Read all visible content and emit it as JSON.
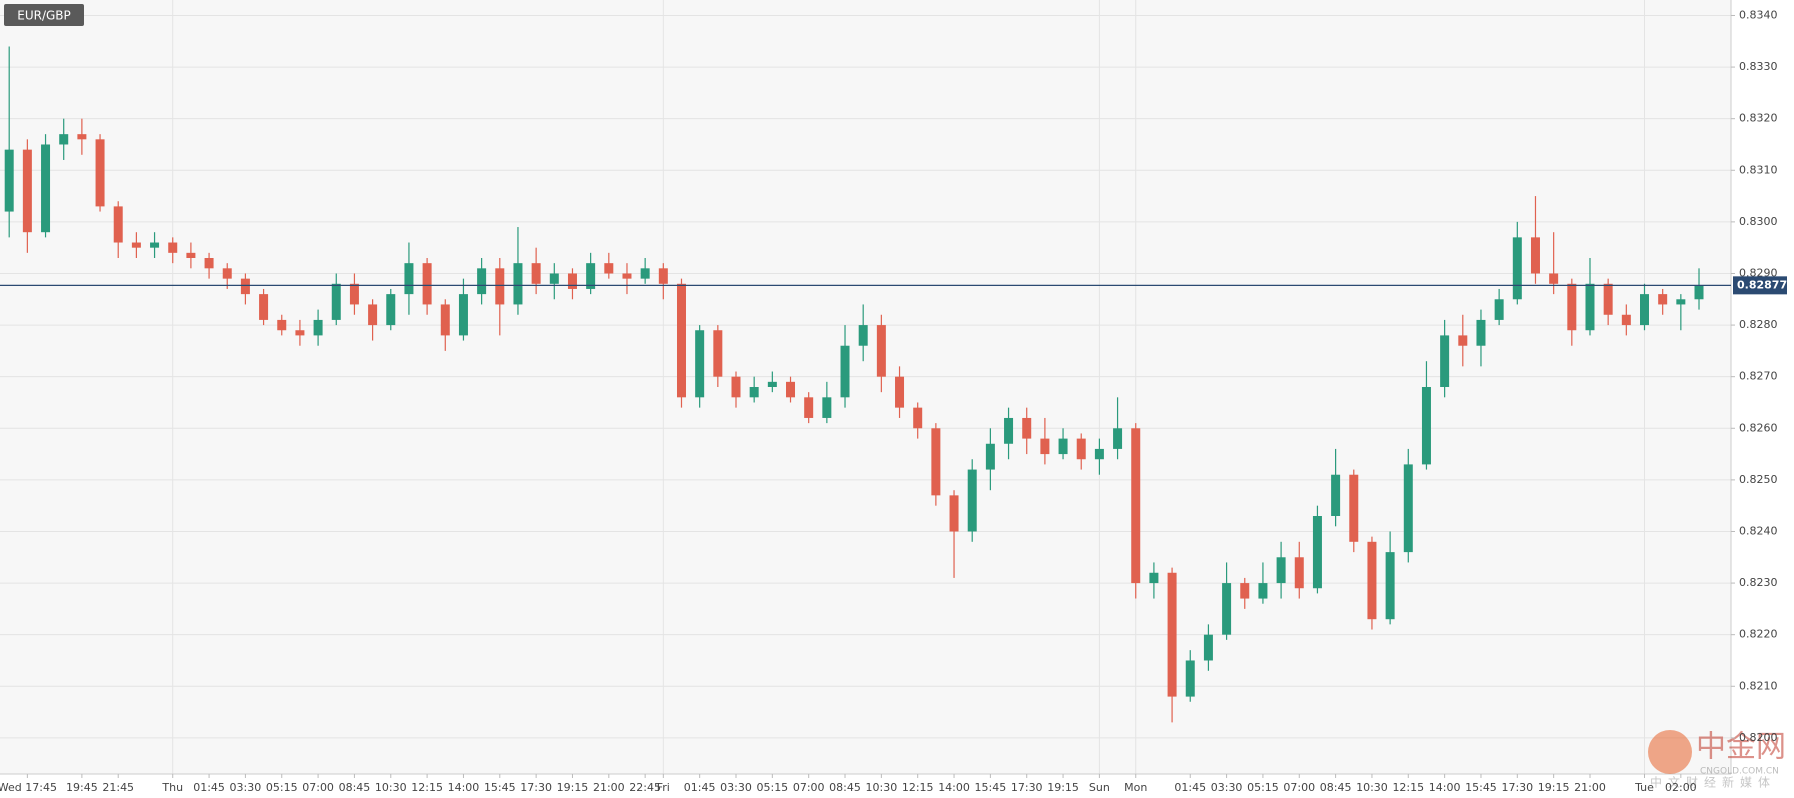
{
  "chart_data": {
    "type": "candlestick",
    "title": "EUR/GBP",
    "categories": [
      null,
      "Wed 17:45",
      null,
      null,
      "19:45",
      null,
      "21:45",
      null,
      null,
      "Thu",
      null,
      "01:45",
      null,
      "03:30",
      null,
      "05:15",
      null,
      "07:00",
      null,
      "08:45",
      null,
      "10:30",
      null,
      "12:15",
      null,
      "14:00",
      null,
      "15:45",
      null,
      "17:30",
      null,
      "19:15",
      null,
      "21:00",
      null,
      "22:45",
      "Fri",
      null,
      "01:45",
      null,
      "03:30",
      null,
      "05:15",
      null,
      "07:00",
      null,
      "08:45",
      null,
      "10:30",
      null,
      "12:15",
      null,
      "14:00",
      null,
      "15:45",
      null,
      "17:30",
      null,
      "19:15",
      null,
      "Sun",
      null,
      "Mon",
      null,
      null,
      "01:45",
      null,
      "03:30",
      null,
      "05:15",
      null,
      "07:00",
      null,
      "08:45",
      null,
      "10:30",
      null,
      "12:15",
      null,
      "14:00",
      null,
      "15:45",
      null,
      "17:30",
      null,
      "19:15",
      null,
      "21:00",
      null,
      null,
      "Tue",
      null,
      "02:00",
      null
    ],
    "ohlc": [
      [
        0.8302,
        0.8334,
        0.8297,
        0.8314
      ],
      [
        0.8314,
        0.8316,
        0.8294,
        0.8298
      ],
      [
        0.8298,
        0.8317,
        0.8297,
        0.8315
      ],
      [
        0.8315,
        0.832,
        0.8312,
        0.8317
      ],
      [
        0.8317,
        0.832,
        0.8313,
        0.8316
      ],
      [
        0.8316,
        0.8317,
        0.8302,
        0.8303
      ],
      [
        0.8303,
        0.8304,
        0.8293,
        0.8296
      ],
      [
        0.8296,
        0.8298,
        0.8293,
        0.8295
      ],
      [
        0.8295,
        0.8298,
        0.8293,
        0.8296
      ],
      [
        0.8296,
        0.8297,
        0.8292,
        0.8294
      ],
      [
        0.8294,
        0.8296,
        0.8291,
        0.8293
      ],
      [
        0.8293,
        0.8294,
        0.8289,
        0.8291
      ],
      [
        0.8291,
        0.8292,
        0.8287,
        0.8289
      ],
      [
        0.8289,
        0.829,
        0.8284,
        0.8286
      ],
      [
        0.8286,
        0.8287,
        0.828,
        0.8281
      ],
      [
        0.8281,
        0.8282,
        0.8278,
        0.8279
      ],
      [
        0.8279,
        0.8281,
        0.8276,
        0.8278
      ],
      [
        0.8278,
        0.8283,
        0.8276,
        0.8281
      ],
      [
        0.8281,
        0.829,
        0.828,
        0.8288
      ],
      [
        0.8288,
        0.829,
        0.8282,
        0.8284
      ],
      [
        0.8284,
        0.8285,
        0.8277,
        0.828
      ],
      [
        0.828,
        0.8287,
        0.8279,
        0.8286
      ],
      [
        0.8286,
        0.8296,
        0.8282,
        0.8292
      ],
      [
        0.8292,
        0.8293,
        0.8282,
        0.8284
      ],
      [
        0.8284,
        0.8285,
        0.8275,
        0.8278
      ],
      [
        0.8278,
        0.8289,
        0.8277,
        0.8286
      ],
      [
        0.8286,
        0.8293,
        0.8284,
        0.8291
      ],
      [
        0.8291,
        0.8293,
        0.8278,
        0.8284
      ],
      [
        0.8284,
        0.8299,
        0.8282,
        0.8292
      ],
      [
        0.8292,
        0.8295,
        0.8286,
        0.8288
      ],
      [
        0.8288,
        0.8292,
        0.8285,
        0.829
      ],
      [
        0.829,
        0.8291,
        0.8285,
        0.8287
      ],
      [
        0.8287,
        0.8294,
        0.8286,
        0.8292
      ],
      [
        0.8292,
        0.8294,
        0.8289,
        0.829
      ],
      [
        0.829,
        0.8292,
        0.8286,
        0.8289
      ],
      [
        0.8289,
        0.8293,
        0.8288,
        0.8291
      ],
      [
        0.8291,
        0.8292,
        0.8285,
        0.8288
      ],
      [
        0.8288,
        0.8289,
        0.8264,
        0.8266
      ],
      [
        0.8266,
        0.828,
        0.8264,
        0.8279
      ],
      [
        0.8279,
        0.828,
        0.8268,
        0.827
      ],
      [
        0.827,
        0.8271,
        0.8264,
        0.8266
      ],
      [
        0.8266,
        0.827,
        0.8265,
        0.8268
      ],
      [
        0.8268,
        0.8271,
        0.8267,
        0.8269
      ],
      [
        0.8269,
        0.827,
        0.8265,
        0.8266
      ],
      [
        0.8266,
        0.8267,
        0.8261,
        0.8262
      ],
      [
        0.8262,
        0.8269,
        0.8261,
        0.8266
      ],
      [
        0.8266,
        0.828,
        0.8264,
        0.8276
      ],
      [
        0.8276,
        0.8284,
        0.8273,
        0.828
      ],
      [
        0.828,
        0.8282,
        0.8267,
        0.827
      ],
      [
        0.827,
        0.8272,
        0.8262,
        0.8264
      ],
      [
        0.8264,
        0.8265,
        0.8258,
        0.826
      ],
      [
        0.826,
        0.8261,
        0.8245,
        0.8247
      ],
      [
        0.8247,
        0.8248,
        0.8231,
        0.824
      ],
      [
        0.824,
        0.8254,
        0.8238,
        0.8252
      ],
      [
        0.8252,
        0.826,
        0.8248,
        0.8257
      ],
      [
        0.8257,
        0.8264,
        0.8254,
        0.8262
      ],
      [
        0.8262,
        0.8264,
        0.8255,
        0.8258
      ],
      [
        0.8258,
        0.8262,
        0.8253,
        0.8255
      ],
      [
        0.8255,
        0.826,
        0.8254,
        0.8258
      ],
      [
        0.8258,
        0.8259,
        0.8252,
        0.8254
      ],
      [
        0.8254,
        0.8258,
        0.8251,
        0.8256
      ],
      [
        0.8256,
        0.8266,
        0.8254,
        0.826
      ],
      [
        0.826,
        0.8261,
        0.8227,
        0.823
      ],
      [
        0.823,
        0.8234,
        0.8227,
        0.8232
      ],
      [
        0.8232,
        0.8233,
        0.8203,
        0.8208
      ],
      [
        0.8208,
        0.8217,
        0.8207,
        0.8215
      ],
      [
        0.8215,
        0.8222,
        0.8213,
        0.822
      ],
      [
        0.822,
        0.8234,
        0.8219,
        0.823
      ],
      [
        0.823,
        0.8231,
        0.8225,
        0.8227
      ],
      [
        0.8227,
        0.8234,
        0.8226,
        0.823
      ],
      [
        0.823,
        0.8238,
        0.8227,
        0.8235
      ],
      [
        0.8235,
        0.8238,
        0.8227,
        0.8229
      ],
      [
        0.8229,
        0.8245,
        0.8228,
        0.8243
      ],
      [
        0.8243,
        0.8256,
        0.8241,
        0.8251
      ],
      [
        0.8251,
        0.8252,
        0.8236,
        0.8238
      ],
      [
        0.8238,
        0.8239,
        0.8221,
        0.8223
      ],
      [
        0.8223,
        0.824,
        0.8222,
        0.8236
      ],
      [
        0.8236,
        0.8256,
        0.8234,
        0.8253
      ],
      [
        0.8253,
        0.8273,
        0.8252,
        0.8268
      ],
      [
        0.8268,
        0.8281,
        0.8266,
        0.8278
      ],
      [
        0.8278,
        0.8282,
        0.8272,
        0.8276
      ],
      [
        0.8276,
        0.8283,
        0.8272,
        0.8281
      ],
      [
        0.8281,
        0.8287,
        0.828,
        0.8285
      ],
      [
        0.8285,
        0.83,
        0.8284,
        0.8297
      ],
      [
        0.8297,
        0.8305,
        0.8288,
        0.829
      ],
      [
        0.829,
        0.8298,
        0.8286,
        0.8288
      ],
      [
        0.8288,
        0.8289,
        0.8276,
        0.8279
      ],
      [
        0.8279,
        0.8293,
        0.8278,
        0.8288
      ],
      [
        0.8288,
        0.8289,
        0.828,
        0.8282
      ],
      [
        0.8282,
        0.8284,
        0.8278,
        0.828
      ],
      [
        0.828,
        0.8288,
        0.8279,
        0.8286
      ],
      [
        0.8286,
        0.8287,
        0.8282,
        0.8284
      ],
      [
        0.8284,
        0.8286,
        0.8279,
        0.8285
      ],
      [
        0.8285,
        0.8291,
        0.8283,
        0.82877
      ]
    ],
    "up_color": "#2a9a7c",
    "down_color": "#e0614f",
    "price_line_color": "#2b4a72",
    "current_price": 0.82877,
    "ylim": [
      0.8193,
      0.8343
    ],
    "yticks": [
      {
        "value": 0.82,
        "label": "0.8200"
      },
      {
        "value": 0.821,
        "label": "0.8210"
      },
      {
        "value": 0.822,
        "label": "0.8220"
      },
      {
        "value": 0.823,
        "label": "0.8230"
      },
      {
        "value": 0.824,
        "label": "0.8240"
      },
      {
        "value": 0.825,
        "label": "0.8250"
      },
      {
        "value": 0.826,
        "label": "0.8260"
      },
      {
        "value": 0.827,
        "label": "0.8270"
      },
      {
        "value": 0.828,
        "label": "0.8280"
      },
      {
        "value": 0.829,
        "label": "0.8290"
      },
      {
        "value": 0.83,
        "label": "0.8300"
      },
      {
        "value": 0.831,
        "label": "0.8310"
      },
      {
        "value": 0.832,
        "label": "0.8320"
      },
      {
        "value": 0.833,
        "label": "0.8330"
      },
      {
        "value": 0.834,
        "label": "0.8340"
      }
    ],
    "grid": true
  },
  "watermark": {
    "name": "中金网",
    "site": "CNGOLD.COM.CN",
    "slogan": "中文财经新媒体"
  }
}
